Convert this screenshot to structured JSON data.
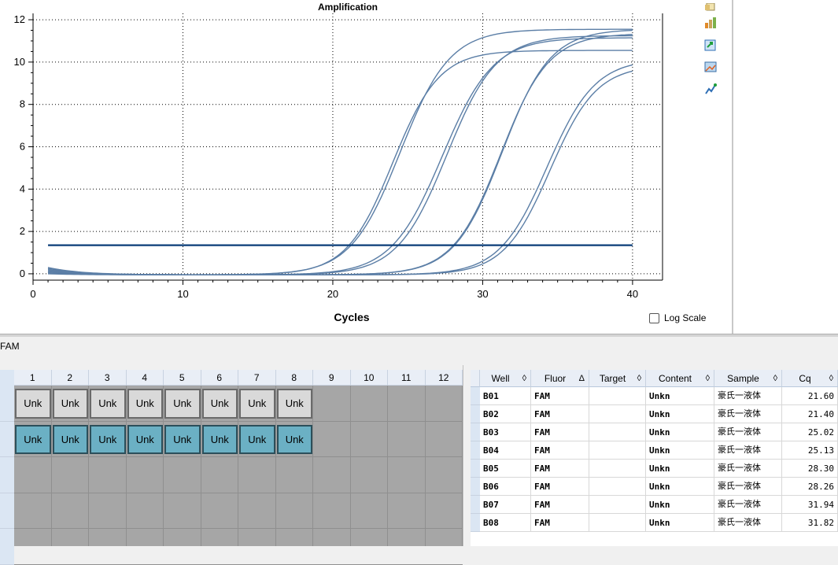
{
  "chart": {
    "title": "Amplification",
    "xlabel": "Cycles",
    "log_scale_label": "Log Scale"
  },
  "chart_data": {
    "type": "line",
    "title": "Amplification",
    "xlabel": "Cycles",
    "ylabel": "",
    "xlim": [
      0,
      42
    ],
    "ylim": [
      -0.3,
      12.3
    ],
    "x_ticks": [
      0,
      10,
      20,
      30,
      40
    ],
    "y_ticks": [
      0,
      2,
      4,
      6,
      8,
      10,
      12
    ],
    "threshold": 1.35,
    "grid": true,
    "log_scale": false,
    "series_params": [
      {
        "well": "B01",
        "plateau": 10.6,
        "mid": 24.0,
        "slope": 1.55,
        "start": 0.35
      },
      {
        "well": "B02",
        "plateau": 11.6,
        "mid": 24.5,
        "slope": 1.65,
        "start": 0.15
      },
      {
        "well": "B03",
        "plateau": 11.2,
        "mid": 27.3,
        "slope": 1.7,
        "start": 0.3
      },
      {
        "well": "B04",
        "plateau": 11.3,
        "mid": 27.6,
        "slope": 1.65,
        "start": 0.1
      },
      {
        "well": "B05",
        "plateau": 11.4,
        "mid": 31.2,
        "slope": 1.6,
        "start": 0.25
      },
      {
        "well": "B06",
        "plateau": 11.6,
        "mid": 31.3,
        "slope": 1.6,
        "start": 0.1
      },
      {
        "well": "B07",
        "plateau": 9.9,
        "mid": 34.5,
        "slope": 1.55,
        "start": 0.2
      },
      {
        "well": "B08",
        "plateau": 10.2,
        "mid": 34.3,
        "slope": 1.6,
        "start": 0.05
      }
    ],
    "line_color": "#5b7ea6",
    "threshold_color": "#0a3d78"
  },
  "toolbar": {
    "icons": [
      "copy-icon",
      "chart-style-icon",
      "export-icon",
      "image-icon",
      "trend-icon"
    ]
  },
  "fluor_selector": {
    "label": "FAM"
  },
  "plate": {
    "columns": [
      "1",
      "2",
      "3",
      "4",
      "5",
      "6",
      "7",
      "8",
      "9",
      "10",
      "11",
      "12"
    ],
    "rows": [
      {
        "wells": [
          "Unk",
          "Unk",
          "Unk",
          "Unk",
          "Unk",
          "Unk",
          "Unk",
          "Unk"
        ],
        "style": "gray"
      },
      {
        "wells": [
          "Unk",
          "Unk",
          "Unk",
          "Unk",
          "Unk",
          "Unk",
          "Unk",
          "Unk"
        ],
        "style": "teal"
      }
    ],
    "empty_rows": 3
  },
  "table": {
    "headers": [
      "Well",
      "Fluor",
      "Target",
      "Content",
      "Sample",
      "Cq"
    ],
    "sort_arrows": [
      "◊",
      "Δ",
      "◊",
      "◊",
      "◊",
      "◊"
    ],
    "rows": [
      {
        "well": "B01",
        "fluor": "FAM",
        "target": "",
        "content": "Unkn",
        "sample": "豪氏一液体",
        "cq": "21.60"
      },
      {
        "well": "B02",
        "fluor": "FAM",
        "target": "",
        "content": "Unkn",
        "sample": "豪氏一液体",
        "cq": "21.40"
      },
      {
        "well": "B03",
        "fluor": "FAM",
        "target": "",
        "content": "Unkn",
        "sample": "豪氏一液体",
        "cq": "25.02"
      },
      {
        "well": "B04",
        "fluor": "FAM",
        "target": "",
        "content": "Unkn",
        "sample": "豪氏一液体",
        "cq": "25.13"
      },
      {
        "well": "B05",
        "fluor": "FAM",
        "target": "",
        "content": "Unkn",
        "sample": "豪氏一液体",
        "cq": "28.30"
      },
      {
        "well": "B06",
        "fluor": "FAM",
        "target": "",
        "content": "Unkn",
        "sample": "豪氏一液体",
        "cq": "28.26"
      },
      {
        "well": "B07",
        "fluor": "FAM",
        "target": "",
        "content": "Unkn",
        "sample": "豪氏一液体",
        "cq": "31.94"
      },
      {
        "well": "B08",
        "fluor": "FAM",
        "target": "",
        "content": "Unkn",
        "sample": "豪氏一液体",
        "cq": "31.82"
      }
    ]
  }
}
